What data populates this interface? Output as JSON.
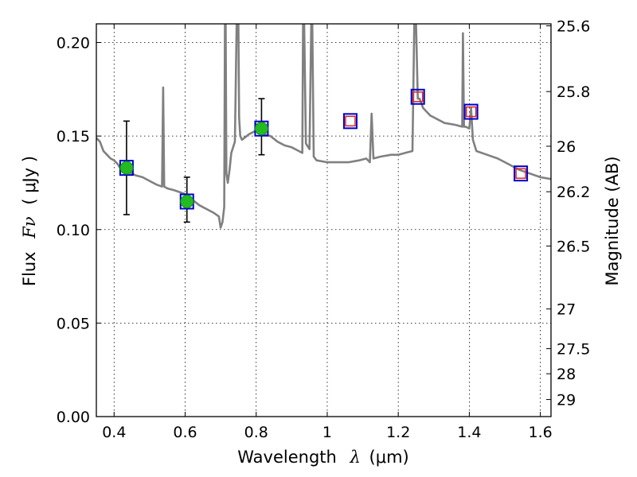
{
  "chart_data": {
    "type": "scatter",
    "xlabel": "Wavelength",
    "xlabel_symbol": "λ",
    "xlabel_unit": "(μm)",
    "ylabel": "Flux",
    "ylabel_symbol": "Fν",
    "ylabel_unit": "( μJy )",
    "y2label": "Magnitude (AB)",
    "xlim": [
      0.35,
      1.63
    ],
    "ylim": [
      0.0,
      0.21
    ],
    "grid": true,
    "x_ticks": [
      {
        "value": 0.4,
        "label": "0.4"
      },
      {
        "value": 0.6,
        "label": "0.6"
      },
      {
        "value": 0.8,
        "label": "0.8"
      },
      {
        "value": 1.0,
        "label": "1"
      },
      {
        "value": 1.2,
        "label": "1.2"
      },
      {
        "value": 1.4,
        "label": "1.4"
      },
      {
        "value": 1.6,
        "label": "1.6"
      }
    ],
    "y_ticks": [
      {
        "value": 0.0,
        "label": "0.00"
      },
      {
        "value": 0.05,
        "label": "0.05"
      },
      {
        "value": 0.1,
        "label": "0.10"
      },
      {
        "value": 0.15,
        "label": "0.15"
      },
      {
        "value": 0.2,
        "label": "0.20"
      }
    ],
    "y2_ticks": [
      {
        "value": 25.6,
        "label": "25.6"
      },
      {
        "value": 25.8,
        "label": "25.8"
      },
      {
        "value": 26.0,
        "label": "26"
      },
      {
        "value": 26.2,
        "label": "26.2"
      },
      {
        "value": 26.5,
        "label": "26.5"
      },
      {
        "value": 27.0,
        "label": "27"
      },
      {
        "value": 27.5,
        "label": "27.5"
      },
      {
        "value": 28.0,
        "label": "28"
      },
      {
        "value": 29.0,
        "label": "29"
      }
    ],
    "series": [
      {
        "kind": "spectrum",
        "color": "#808080",
        "x": [
          0.35,
          0.36,
          0.37,
          0.38,
          0.39,
          0.4,
          0.41,
          0.42,
          0.44,
          0.46,
          0.48,
          0.5,
          0.52,
          0.535,
          0.538,
          0.541,
          0.55,
          0.57,
          0.6,
          0.62,
          0.64,
          0.66,
          0.68,
          0.695,
          0.7,
          0.705,
          0.71,
          0.712,
          0.714,
          0.716,
          0.72,
          0.725,
          0.73,
          0.74,
          0.745,
          0.75,
          0.752,
          0.755,
          0.76,
          0.78,
          0.8,
          0.82,
          0.84,
          0.86,
          0.88,
          0.9,
          0.92,
          0.93,
          0.932,
          0.935,
          0.94,
          0.95,
          0.955,
          0.958,
          0.962,
          0.97,
          1.0,
          1.03,
          1.06,
          1.09,
          1.11,
          1.12,
          1.125,
          1.13,
          1.15,
          1.18,
          1.2,
          1.22,
          1.24,
          1.245,
          1.25,
          1.255,
          1.26,
          1.27,
          1.28,
          1.29,
          1.3,
          1.33,
          1.36,
          1.38,
          1.382,
          1.385,
          1.39,
          1.4,
          1.405,
          1.41,
          1.42,
          1.45,
          1.48,
          1.51,
          1.54,
          1.57,
          1.6,
          1.63
        ],
        "y": [
          0.149,
          0.147,
          0.142,
          0.14,
          0.138,
          0.137,
          0.135,
          0.132,
          0.131,
          0.129,
          0.128,
          0.126,
          0.124,
          0.123,
          0.176,
          0.123,
          0.122,
          0.121,
          0.119,
          0.116,
          0.113,
          0.111,
          0.109,
          0.107,
          0.101,
          0.104,
          0.112,
          0.21,
          0.21,
          0.13,
          0.125,
          0.132,
          0.141,
          0.147,
          0.21,
          0.21,
          0.16,
          0.15,
          0.148,
          0.151,
          0.153,
          0.151,
          0.15,
          0.147,
          0.145,
          0.144,
          0.142,
          0.141,
          0.21,
          0.21,
          0.146,
          0.143,
          0.21,
          0.21,
          0.139,
          0.137,
          0.136,
          0.136,
          0.136,
          0.137,
          0.138,
          0.136,
          0.162,
          0.138,
          0.139,
          0.14,
          0.14,
          0.141,
          0.142,
          0.21,
          0.21,
          0.17,
          0.17,
          0.165,
          0.163,
          0.161,
          0.16,
          0.157,
          0.156,
          0.155,
          0.205,
          0.155,
          0.155,
          0.154,
          0.165,
          0.148,
          0.142,
          0.14,
          0.138,
          0.135,
          0.132,
          0.13,
          0.128,
          0.127
        ]
      },
      {
        "kind": "model_squares",
        "color": "#0000cc",
        "x": [
          0.435,
          0.605,
          0.815,
          1.065,
          1.255,
          1.405,
          1.545
        ],
        "y": [
          0.133,
          0.115,
          0.154,
          0.158,
          0.171,
          0.163,
          0.13
        ]
      },
      {
        "kind": "observed_points",
        "color": "#22bb22",
        "x": [
          0.435,
          0.605,
          0.815
        ],
        "y": [
          0.133,
          0.115,
          0.154
        ],
        "y_err_low": [
          0.108,
          0.104,
          0.14
        ],
        "y_err_high": [
          0.158,
          0.128,
          0.17
        ]
      },
      {
        "kind": "upper_squares",
        "color": "#dd2222",
        "x": [
          1.065,
          1.255,
          1.405,
          1.545
        ],
        "y": [
          0.158,
          0.171,
          0.163,
          0.13
        ]
      }
    ]
  }
}
